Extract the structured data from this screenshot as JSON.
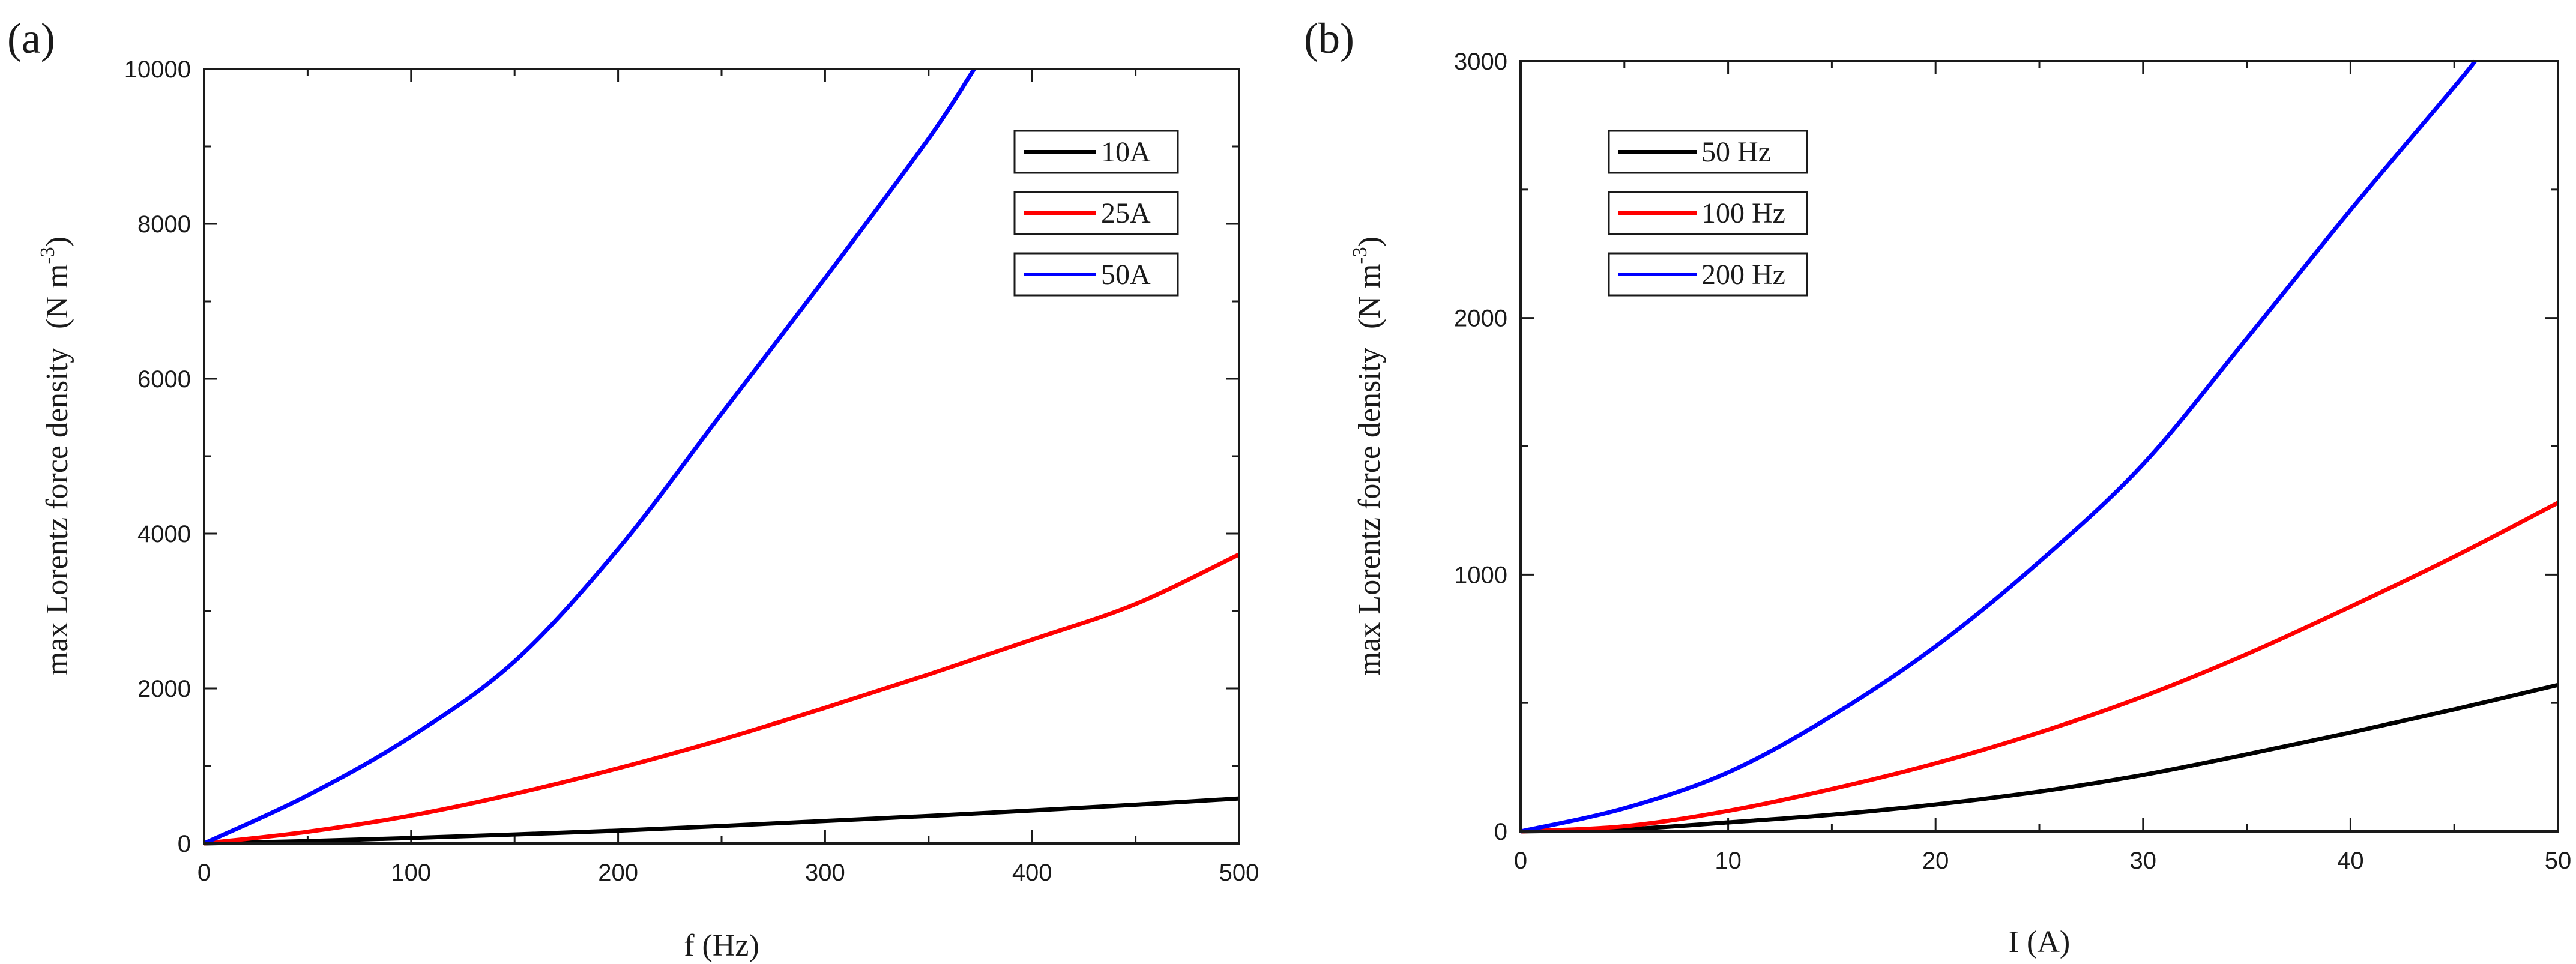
{
  "chart_data": [
    {
      "type": "line",
      "panel_label": "(a)",
      "xlabel": "f (Hz)",
      "ylabel": "max Lorentz force density",
      "ylabel_unit": "(N m",
      "ylabel_unit_exp": "-3",
      "ylabel_unit_close": ")",
      "xlim": [
        0,
        500
      ],
      "ylim": [
        0,
        10000
      ],
      "xticks": [
        0,
        100,
        200,
        300,
        400,
        500
      ],
      "yticks": [
        0,
        2000,
        4000,
        6000,
        8000,
        10000
      ],
      "legend_position": "top-right",
      "series": [
        {
          "name": "10A",
          "color": "#000000",
          "x": [
            0,
            50,
            100,
            150,
            200,
            250,
            300,
            350,
            400,
            450,
            500
          ],
          "values": [
            0,
            30,
            70,
            115,
            165,
            225,
            290,
            355,
            425,
            500,
            580
          ]
        },
        {
          "name": "25A",
          "color": "#ff0000",
          "x": [
            0,
            50,
            100,
            150,
            200,
            250,
            300,
            350,
            400,
            450,
            500
          ],
          "values": [
            0,
            150,
            360,
            640,
            970,
            1340,
            1750,
            2180,
            2630,
            3090,
            3730
          ]
        },
        {
          "name": "50A",
          "color": "#0000ff",
          "x": [
            0,
            50,
            100,
            150,
            200,
            250,
            300,
            350,
            372
          ],
          "values": [
            0,
            620,
            1380,
            2350,
            3800,
            5550,
            7300,
            9100,
            10000
          ]
        }
      ]
    },
    {
      "type": "line",
      "panel_label": "(b)",
      "xlabel": "I (A)",
      "ylabel": "max Lorentz force density",
      "ylabel_unit": "(N m",
      "ylabel_unit_exp": "-3",
      "ylabel_unit_close": ")",
      "xlim": [
        0,
        50
      ],
      "ylim": [
        0,
        3000
      ],
      "xticks": [
        0,
        10,
        20,
        30,
        40,
        50
      ],
      "yticks": [
        0,
        1000,
        2000,
        3000
      ],
      "legend_position": "top-left",
      "series": [
        {
          "name": "50 Hz",
          "color": "#000000",
          "x": [
            0,
            5,
            10,
            15,
            20,
            25,
            30,
            35,
            40,
            45,
            50
          ],
          "values": [
            0,
            8,
            35,
            65,
            105,
            155,
            220,
            300,
            385,
            475,
            570
          ]
        },
        {
          "name": "100 Hz",
          "color": "#ff0000",
          "x": [
            0,
            5,
            10,
            15,
            20,
            25,
            30,
            35,
            40,
            45,
            50
          ],
          "values": [
            0,
            20,
            80,
            165,
            265,
            385,
            525,
            690,
            875,
            1070,
            1280
          ]
        },
        {
          "name": "200 Hz",
          "color": "#0000ff",
          "x": [
            0,
            5,
            10,
            15,
            20,
            25,
            30,
            35,
            40,
            45,
            46
          ],
          "values": [
            0,
            90,
            230,
            450,
            720,
            1050,
            1430,
            1920,
            2420,
            2900,
            3000
          ]
        }
      ]
    }
  ]
}
